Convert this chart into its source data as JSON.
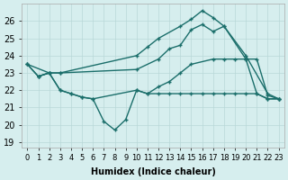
{
  "xlabel": "Humidex (Indice chaleur)",
  "bg_color": "#d6eeee",
  "grid_color": "#b8d8d8",
  "line_color": "#1a6e6a",
  "font_size": 7,
  "ylim": [
    18.7,
    27.0
  ],
  "yticks": [
    19,
    20,
    21,
    22,
    23,
    24,
    25,
    26
  ],
  "xticks": [
    0,
    1,
    2,
    3,
    4,
    5,
    6,
    7,
    8,
    9,
    10,
    11,
    12,
    13,
    14,
    15,
    16,
    17,
    18,
    19,
    20,
    21,
    22,
    23
  ],
  "line1_x": [
    0,
    1,
    2,
    3,
    10,
    11,
    12,
    14,
    15,
    16,
    17,
    18,
    20,
    22,
    23
  ],
  "line1_y": [
    23.5,
    22.8,
    23.0,
    23.0,
    24.0,
    24.5,
    25.0,
    25.7,
    26.1,
    26.6,
    26.2,
    25.7,
    24.0,
    21.8,
    21.5
  ],
  "line2_x": [
    0,
    2,
    3,
    10,
    12,
    13,
    14,
    15,
    16,
    17,
    18,
    20,
    21,
    22,
    23
  ],
  "line2_y": [
    23.5,
    23.0,
    23.0,
    23.2,
    23.8,
    24.4,
    24.6,
    25.5,
    25.8,
    25.4,
    25.7,
    23.8,
    23.8,
    21.7,
    21.5
  ],
  "line3_x": [
    0,
    1,
    2,
    3,
    4,
    5,
    6,
    7,
    8,
    9,
    10,
    11,
    12,
    13,
    14,
    15,
    17,
    18,
    19,
    20,
    21,
    22,
    23
  ],
  "line3_y": [
    23.5,
    22.8,
    23.0,
    22.0,
    21.8,
    21.6,
    21.5,
    20.2,
    19.7,
    20.3,
    22.0,
    21.8,
    22.2,
    22.5,
    23.0,
    23.5,
    23.8,
    23.8,
    23.8,
    23.8,
    21.8,
    21.5,
    21.5
  ],
  "line4_x": [
    1,
    2,
    3,
    4,
    5,
    6,
    10,
    11,
    12,
    13,
    14,
    15,
    16,
    17,
    18,
    19,
    20,
    21,
    22,
    23
  ],
  "line4_y": [
    22.8,
    23.0,
    22.0,
    21.8,
    21.6,
    21.5,
    22.0,
    21.8,
    21.8,
    21.8,
    21.8,
    21.8,
    21.8,
    21.8,
    21.8,
    21.8,
    21.8,
    21.8,
    21.5,
    21.5
  ]
}
